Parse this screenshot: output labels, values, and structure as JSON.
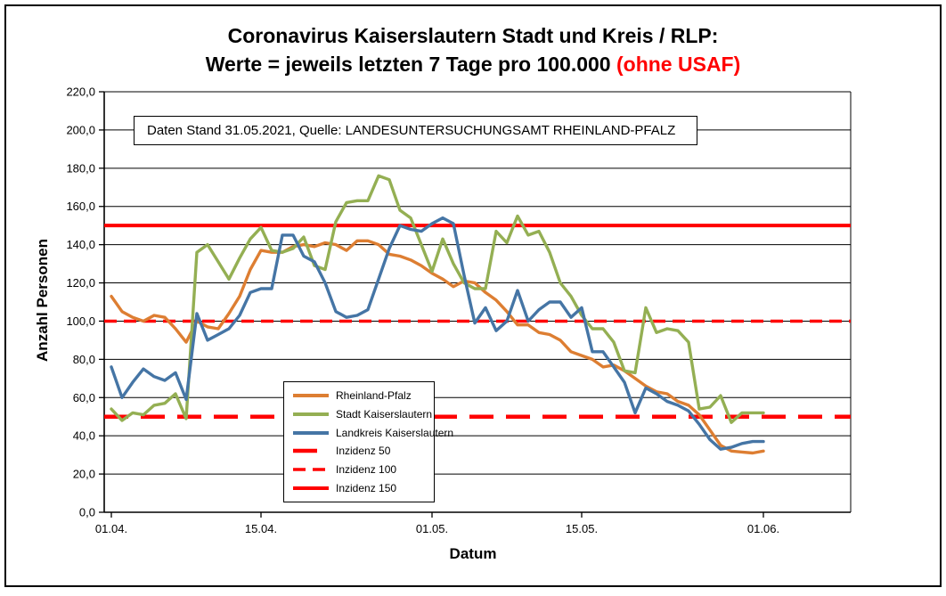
{
  "title": {
    "line1": "Coronavirus Kaiserslautern Stadt und Kreis / RLP:",
    "line2_black": "Werte = jeweils letzten 7 Tage pro 100.000 ",
    "line2_red": "(ohne USAF)"
  },
  "info_box": {
    "text": "Daten Stand 31.05.2021, Quelle: LANDESUNTERSUCHUNGSAMT RHEINLAND-PFALZ"
  },
  "y_axis": {
    "title": "Anzahl Personen",
    "tick_labels": [
      "220,0",
      "200,0",
      "180,0",
      "160,0",
      "140,0",
      "120,0",
      "100,0",
      "80,0",
      "60,0",
      "40,0",
      "20,0",
      "0,0"
    ]
  },
  "x_axis": {
    "title": "Datum",
    "ticks": [
      {
        "label": "01.04.",
        "day": 0
      },
      {
        "label": "15.04.",
        "day": 14
      },
      {
        "label": "01.05.",
        "day": 30
      },
      {
        "label": "15.05.",
        "day": 44
      },
      {
        "label": "01.06.",
        "day": 61
      }
    ]
  },
  "chart_data": {
    "type": "line",
    "title": "Coronavirus Kaiserslautern Stadt und Kreis / RLP: Werte = jeweils letzten 7 Tage pro 100.000 (ohne USAF)",
    "xlabel": "Datum",
    "ylabel": "Anzahl Personen",
    "x_range_note": "daily values, 01.04.2021 through 01.06.2021, 62 points",
    "ylim": [
      0,
      220
    ],
    "y_step": 20,
    "grid": true,
    "legend_position": "inside lower-left",
    "series": [
      {
        "name": "Rheinland-Pfalz",
        "color": "#DD7E32",
        "values": [
          113,
          105,
          102,
          100,
          103,
          102,
          96,
          89,
          100,
          97,
          96,
          104,
          113,
          127,
          137,
          136,
          136,
          139,
          140,
          139,
          141,
          140,
          137,
          142,
          142,
          140,
          135,
          134,
          132,
          129,
          125,
          122,
          118,
          121,
          120,
          115,
          111,
          105,
          98,
          98,
          94,
          93,
          90,
          84,
          82,
          80,
          76,
          77,
          74,
          70,
          66,
          63,
          62,
          58,
          56,
          51,
          43,
          35,
          32,
          31.5,
          31,
          32
        ]
      },
      {
        "name": "Stadt Kaiserslautern",
        "color": "#94AF53",
        "values": [
          54,
          48,
          52,
          51,
          56,
          57,
          62,
          49,
          136,
          140,
          131,
          122,
          133,
          143,
          149,
          137,
          136,
          138,
          144,
          129,
          127,
          152,
          162,
          163,
          163,
          176,
          174,
          158,
          154,
          140,
          126,
          143,
          130,
          120,
          117,
          117,
          147,
          141,
          155,
          145,
          147,
          136,
          120,
          113,
          103,
          96,
          96,
          89,
          74,
          73,
          107,
          94,
          96,
          95,
          89,
          54,
          55,
          61,
          47,
          52,
          52,
          52
        ]
      },
      {
        "name": "Landkreis Kaiserslautern",
        "color": "#4575A5",
        "values": [
          76,
          60,
          68,
          75,
          71,
          69,
          73,
          59,
          104,
          90,
          93,
          96,
          103,
          115,
          117,
          117,
          145,
          145,
          134,
          131,
          120,
          105,
          102,
          103,
          106,
          122,
          138,
          150,
          148,
          147,
          151,
          154,
          151,
          124,
          99,
          107,
          95,
          100,
          116,
          100,
          106,
          110,
          110,
          102,
          107,
          84,
          84,
          76,
          68,
          52,
          65,
          62,
          58,
          56,
          53,
          46,
          38,
          33,
          34,
          36,
          37,
          37
        ]
      }
    ],
    "ref_lines": [
      {
        "name": "Inzidenz 50",
        "value": 50,
        "color": "#FF0000",
        "dash": "27 14",
        "width": 4.5
      },
      {
        "name": "Inzidenz 100",
        "value": 100,
        "color": "#FF0000",
        "dash": "14 8",
        "width": 3.5
      },
      {
        "name": "Inzidenz 150",
        "value": 150,
        "color": "#FF0000",
        "dash": "",
        "width": 4
      }
    ],
    "legend_order": [
      "Rheinland-Pfalz",
      "Stadt Kaiserslautern",
      "Landkreis Kaiserslautern",
      "Inzidenz 50",
      "Inzidenz 100",
      "Inzidenz 150"
    ]
  }
}
